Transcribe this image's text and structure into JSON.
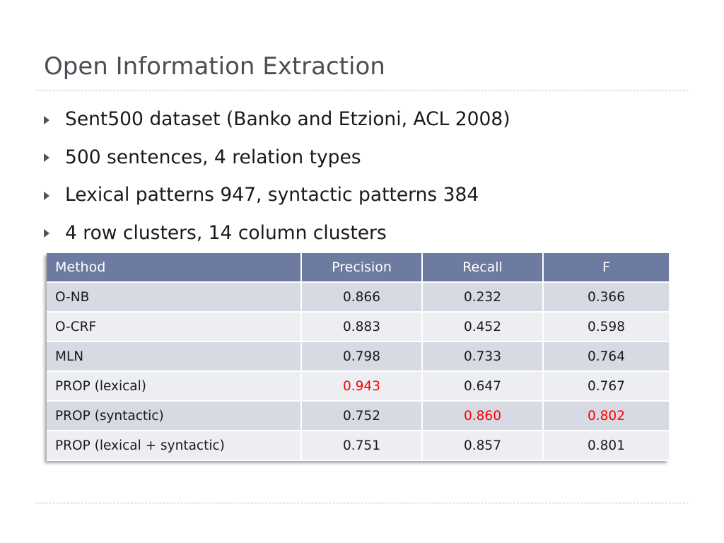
{
  "slide": {
    "title": "Open Information Extraction",
    "bullets": [
      "Sent500 dataset (Banko and Etzioni, ACL 2008)",
      "500 sentences, 4 relation types",
      "Lexical patterns 947, syntactic patterns 384",
      "4 row clusters, 14 column clusters"
    ]
  },
  "table": {
    "headers": [
      "Method",
      "Precision",
      "Recall",
      "F"
    ],
    "rows": [
      {
        "method": "O-NB",
        "precision": "0.866",
        "recall": "0.232",
        "f": "0.366"
      },
      {
        "method": "O-CRF",
        "precision": "0.883",
        "recall": "0.452",
        "f": "0.598"
      },
      {
        "method": "MLN",
        "precision": "0.798",
        "recall": "0.733",
        "f": "0.764"
      },
      {
        "method": "PROP (lexical)",
        "precision": "0.943",
        "recall": "0.647",
        "f": "0.767"
      },
      {
        "method": "PROP (syntactic)",
        "precision": "0.752",
        "recall": "0.860",
        "f": "0.802"
      },
      {
        "method": "PROP (lexical + syntactic)",
        "precision": "0.751",
        "recall": "0.857",
        "f": "0.801"
      }
    ],
    "highlight_color": "#ff0000",
    "header_color": "#6e7ba0"
  }
}
